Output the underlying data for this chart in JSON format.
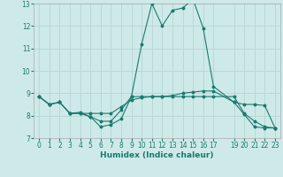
{
  "xlabel": "Humidex (Indice chaleur)",
  "bg_color": "#ceeae8",
  "grid_color": "#b8d8d6",
  "line_color": "#1a7a6e",
  "xlim": [
    -0.5,
    23.5
  ],
  "ylim": [
    7,
    13
  ],
  "yticks": [
    7,
    8,
    9,
    10,
    11,
    12,
    13
  ],
  "xticks": [
    0,
    1,
    2,
    3,
    4,
    5,
    6,
    7,
    8,
    9,
    10,
    11,
    12,
    13,
    14,
    15,
    16,
    17,
    19,
    20,
    21,
    22,
    23
  ],
  "line1_x": [
    0,
    1,
    2,
    3,
    4,
    5,
    6,
    7,
    8,
    9,
    10,
    11,
    12,
    13,
    14,
    15,
    16,
    17,
    19,
    20,
    21,
    22,
    23
  ],
  "line1_y": [
    8.85,
    8.5,
    8.6,
    8.1,
    8.15,
    7.95,
    7.5,
    7.6,
    7.85,
    8.85,
    11.2,
    13.0,
    12.0,
    12.7,
    12.8,
    13.2,
    11.9,
    9.3,
    8.6,
    8.05,
    7.5,
    7.45,
    7.45
  ],
  "line2_x": [
    0,
    1,
    2,
    3,
    4,
    5,
    6,
    7,
    8,
    9,
    10,
    11,
    12,
    13,
    14,
    15,
    16,
    17,
    19,
    20,
    21,
    22,
    23
  ],
  "line2_y": [
    8.85,
    8.5,
    8.6,
    8.1,
    8.1,
    8.1,
    8.1,
    8.1,
    8.4,
    8.7,
    8.8,
    8.85,
    8.85,
    8.9,
    9.0,
    9.05,
    9.1,
    9.1,
    8.6,
    8.5,
    8.5,
    8.45,
    7.45
  ],
  "line3_x": [
    0,
    1,
    2,
    3,
    4,
    5,
    6,
    7,
    8,
    9,
    10,
    11,
    12,
    13,
    14,
    15,
    16,
    17,
    19,
    20,
    21,
    22,
    23
  ],
  "line3_y": [
    8.85,
    8.5,
    8.6,
    8.1,
    8.1,
    7.95,
    7.75,
    7.75,
    8.25,
    8.85,
    8.85,
    8.85,
    8.85,
    8.85,
    8.85,
    8.85,
    8.85,
    8.85,
    8.85,
    8.1,
    7.75,
    7.5,
    7.45
  ]
}
